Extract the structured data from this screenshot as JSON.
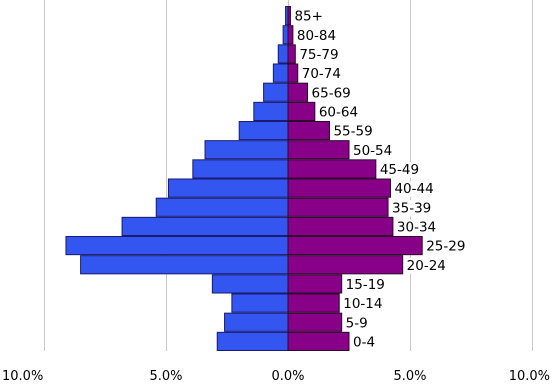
{
  "chart_data": {
    "type": "bar",
    "orientation": "horizontal",
    "subtype": "population-pyramid",
    "categories": [
      "85+",
      "80-84",
      "75-79",
      "70-74",
      "65-69",
      "60-64",
      "55-59",
      "50-54",
      "45-49",
      "40-44",
      "35-39",
      "30-34",
      "25-29",
      "20-24",
      "15-19",
      "10-14",
      "5-9",
      "0-4"
    ],
    "series": [
      {
        "color": "#3355f0",
        "side": "left",
        "values": [
          0.1,
          0.2,
          0.4,
          0.6,
          1.0,
          1.4,
          2.0,
          3.4,
          3.9,
          4.9,
          5.4,
          6.8,
          9.1,
          8.5,
          3.1,
          2.3,
          2.6,
          2.9
        ]
      },
      {
        "color": "#880088",
        "side": "right",
        "values": [
          0.1,
          0.2,
          0.3,
          0.4,
          0.8,
          1.1,
          1.7,
          2.5,
          3.6,
          4.2,
          4.1,
          4.3,
          5.5,
          4.7,
          2.2,
          2.1,
          2.2,
          2.5
        ]
      }
    ],
    "xlim": [
      -10,
      10
    ],
    "xticks": [
      -10,
      -5,
      0,
      5,
      10
    ],
    "xtick_labels": [
      "10.0%",
      "5.0%",
      "0.0%",
      "5.0%",
      "10.0%"
    ],
    "grid": true,
    "legend": "none",
    "title": "",
    "xlabel": "",
    "ylabel": ""
  }
}
